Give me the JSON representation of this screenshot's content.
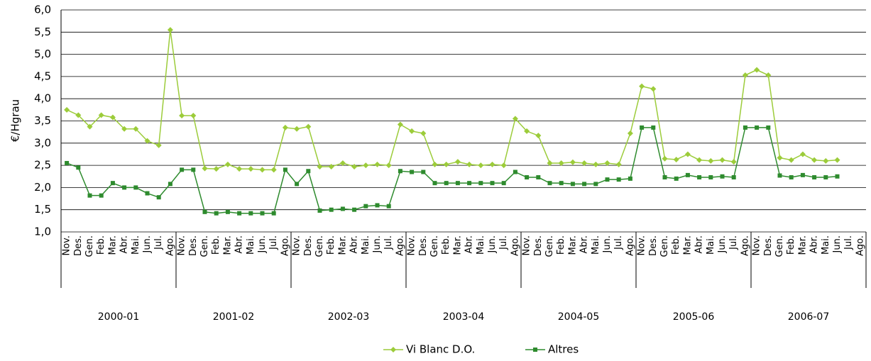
{
  "chart_data": {
    "type": "line",
    "y_label": "€/Hgrau",
    "categories": [
      "Nov.",
      "Des.",
      "Gen.",
      "Feb.",
      "Mar.",
      "Abr.",
      "Mai.",
      "Jun.",
      "Jul.",
      "Ago.",
      "Nov.",
      "Des.",
      "Gen.",
      "Feb.",
      "Mar.",
      "Abr.",
      "Mai.",
      "Jun.",
      "Jul.",
      "Ago.",
      "Nov.",
      "Des.",
      "Gen.",
      "Feb.",
      "Mar.",
      "Abr.",
      "Mai.",
      "Jun.",
      "Jul.",
      "Ago.",
      "Nov.",
      "Des.",
      "Gen.",
      "Feb.",
      "Mar.",
      "Abr.",
      "Mai.",
      "Jun.",
      "Jul.",
      "Ago.",
      "Nov.",
      "Des.",
      "Gen.",
      "Feb.",
      "Mar.",
      "Abr.",
      "Mai.",
      "Jun.",
      "Jul.",
      "Ago.",
      "Nov.",
      "Des.",
      "Gen.",
      "Feb.",
      "Mar.",
      "Abr.",
      "Mai.",
      "Jun.",
      "Jul.",
      "Ago.",
      "Nov.",
      "Des.",
      "Gen.",
      "Feb.",
      "Mar.",
      "Abr.",
      "Mai.",
      "Jun.",
      "Jul.",
      "Ago."
    ],
    "groups": [
      "2000-01",
      "2001-02",
      "2002-03",
      "2003-04",
      "2004-05",
      "2005-06",
      "2006-07"
    ],
    "series": [
      {
        "name": "Vi Blanc D.O.",
        "color": "#9ccc3a",
        "marker": "diamond",
        "values": [
          3.75,
          3.63,
          3.37,
          3.63,
          3.58,
          3.32,
          3.32,
          3.05,
          2.95,
          5.55,
          3.62,
          3.62,
          2.43,
          2.42,
          2.52,
          2.42,
          2.42,
          2.4,
          2.4,
          3.35,
          3.32,
          3.37,
          2.47,
          2.47,
          2.55,
          2.47,
          2.5,
          2.52,
          2.5,
          3.42,
          3.27,
          3.22,
          2.52,
          2.52,
          2.58,
          2.52,
          2.5,
          2.52,
          2.5,
          3.55,
          3.27,
          3.17,
          2.55,
          2.55,
          2.57,
          2.55,
          2.52,
          2.55,
          2.52,
          3.22,
          4.28,
          4.22,
          2.65,
          2.63,
          2.75,
          2.62,
          2.6,
          2.62,
          2.58,
          4.53,
          4.65,
          4.53,
          2.67,
          2.62,
          2.75,
          2.62,
          2.6,
          2.62,
          null,
          null
        ]
      },
      {
        "name": "Altres",
        "color": "#2e8b2e",
        "marker": "square",
        "values": [
          2.55,
          2.45,
          1.82,
          1.82,
          2.1,
          2.0,
          2.0,
          1.87,
          1.78,
          2.08,
          2.4,
          2.4,
          1.45,
          1.42,
          1.45,
          1.42,
          1.42,
          1.42,
          1.42,
          2.4,
          2.08,
          2.37,
          1.48,
          1.5,
          1.52,
          1.5,
          1.58,
          1.6,
          1.58,
          2.37,
          2.35,
          2.35,
          2.1,
          2.1,
          2.1,
          2.1,
          2.1,
          2.1,
          2.1,
          2.35,
          2.23,
          2.23,
          2.1,
          2.1,
          2.08,
          2.08,
          2.08,
          2.18,
          2.18,
          2.2,
          3.35,
          3.35,
          2.23,
          2.2,
          2.28,
          2.23,
          2.23,
          2.25,
          2.23,
          3.35,
          3.35,
          3.35,
          2.27,
          2.23,
          2.28,
          2.23,
          2.23,
          2.25,
          null,
          null
        ]
      }
    ],
    "ylim": [
      1,
      6
    ],
    "yticks": [
      {
        "value": 1,
        "label": "1,0"
      },
      {
        "value": 1.5,
        "label": "1,5"
      },
      {
        "value": 2,
        "label": "2,0"
      },
      {
        "value": 2.5,
        "label": "2,5"
      },
      {
        "value": 3,
        "label": "3,0"
      },
      {
        "value": 3.5,
        "label": "3,5"
      },
      {
        "value": 4,
        "label": "4,0"
      },
      {
        "value": 4.5,
        "label": "4,5"
      },
      {
        "value": 5,
        "label": "5,0"
      },
      {
        "value": 5.5,
        "label": "5,5"
      },
      {
        "value": 6,
        "label": "6,0"
      }
    ],
    "grid": true
  }
}
